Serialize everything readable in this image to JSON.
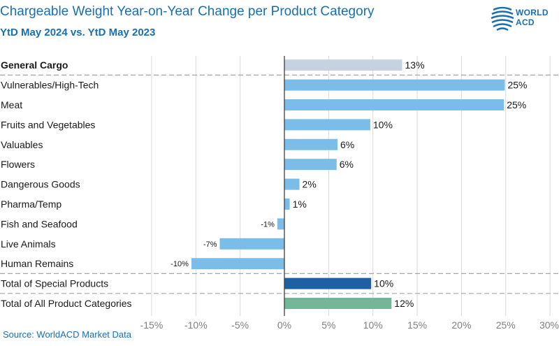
{
  "header": {
    "title": "Chargeable Weight Year-on-Year Change per Product Category",
    "subtitle": "YtD May 2024 vs. YtD May 2023",
    "logo_line1": "WORLD",
    "logo_line2": "ACD"
  },
  "footer": {
    "source": "Source: WorldACD Market Data"
  },
  "colors": {
    "general": "#c6d2e0",
    "special": "#7bbde8",
    "total_special": "#1f5fa3",
    "total_all": "#72b898",
    "accent": "#1a6fb0"
  },
  "chart_data": {
    "type": "bar",
    "orientation": "horizontal",
    "title": "Chargeable Weight Year-on-Year Change per Product Category",
    "subtitle": "YtD May 2024 vs. YtD May 2023",
    "xlim": [
      -15,
      30
    ],
    "xticks": [
      "-15%",
      "-10%",
      "-5%",
      "0%",
      "5%",
      "10%",
      "15%",
      "20%",
      "25%",
      "30%"
    ],
    "xtick_values": [
      -15,
      -10,
      -5,
      0,
      5,
      10,
      15,
      20,
      25,
      30
    ],
    "grid": true,
    "categories": [
      {
        "label": "General Cargo",
        "value": 13.3,
        "display": "13%",
        "group": "general",
        "bold": true
      },
      {
        "label": "Vulnerables/High-Tech",
        "value": 24.9,
        "display": "25%",
        "group": "special"
      },
      {
        "label": "Meat",
        "value": 24.8,
        "display": "25%",
        "group": "special"
      },
      {
        "label": "Fruits and Vegetables",
        "value": 9.7,
        "display": "10%",
        "group": "special"
      },
      {
        "label": "Valuables",
        "value": 6.0,
        "display": "6%",
        "group": "special"
      },
      {
        "label": "Flowers",
        "value": 5.9,
        "display": "6%",
        "group": "special"
      },
      {
        "label": "Dangerous Goods",
        "value": 1.7,
        "display": "2%",
        "group": "special"
      },
      {
        "label": "Pharma/Temp",
        "value": 0.6,
        "display": "1%",
        "group": "special"
      },
      {
        "label": "Fish and Seafood",
        "value": -0.8,
        "display": "-1%",
        "group": "special"
      },
      {
        "label": "Live Animals",
        "value": -7.3,
        "display": "-7%",
        "group": "special"
      },
      {
        "label": "Human Remains",
        "value": -10.5,
        "display": "-10%",
        "group": "special"
      },
      {
        "label": "Total of Special Products",
        "value": 9.8,
        "display": "10%",
        "group": "total_special"
      },
      {
        "label": "Total of All Product Categories",
        "value": 12.1,
        "display": "12%",
        "group": "total_all"
      }
    ]
  }
}
